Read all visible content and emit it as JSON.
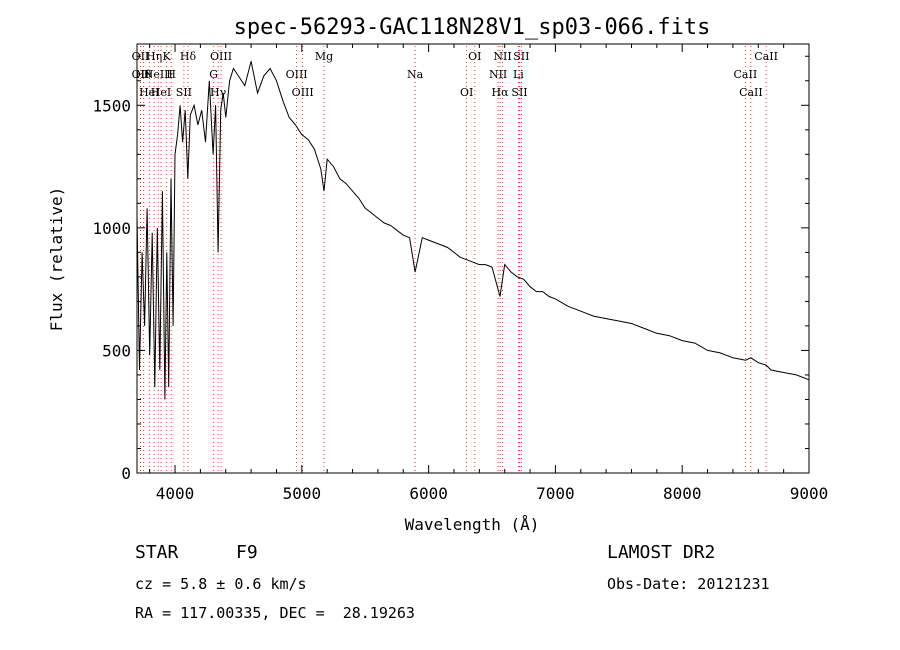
{
  "chart_data": {
    "type": "line",
    "title": "spec-56293-GAC118N28V1_sp03-066.fits",
    "xlabel": "Wavelength (Å)",
    "ylabel": "Flux (relative)",
    "xlim": [
      3700,
      9000
    ],
    "ylim": [
      0,
      1750
    ],
    "x_ticks": [
      4000,
      5000,
      6000,
      7000,
      8000,
      9000
    ],
    "y_ticks": [
      0,
      500,
      1000,
      1500
    ],
    "grid": false,
    "line_color": "#000000",
    "marker_color": "#ff0000",
    "series": [
      {
        "x": [
          3700,
          3720,
          3740,
          3760,
          3780,
          3800,
          3820,
          3840,
          3860,
          3880,
          3900,
          3920,
          3935,
          3950,
          3968,
          3985,
          4000,
          4020,
          4040,
          4060,
          4080,
          4101,
          4120,
          4150,
          4180,
          4210,
          4240,
          4270,
          4300,
          4320,
          4340,
          4360,
          4380,
          4400,
          4430,
          4460,
          4500,
          4550,
          4600,
          4650,
          4700,
          4750,
          4800,
          4850,
          4900,
          4950,
          5000,
          5050,
          5100,
          5150,
          5175,
          5200,
          5250,
          5300,
          5350,
          5400,
          5450,
          5500,
          5550,
          5600,
          5650,
          5700,
          5750,
          5800,
          5850,
          5893,
          5950,
          6000,
          6050,
          6100,
          6150,
          6200,
          6250,
          6300,
          6350,
          6400,
          6450,
          6500,
          6563,
          6600,
          6650,
          6700,
          6750,
          6800,
          6850,
          6900,
          6950,
          7000,
          7100,
          7200,
          7300,
          7400,
          7500,
          7600,
          7700,
          7800,
          7900,
          8000,
          8100,
          8200,
          8300,
          8400,
          8500,
          8542,
          8600,
          8662,
          8700,
          8800,
          8900,
          9000
        ],
        "y": [
          1050,
          420,
          900,
          600,
          1080,
          480,
          980,
          350,
          1000,
          420,
          1150,
          300,
          900,
          350,
          1200,
          600,
          1300,
          1380,
          1500,
          1350,
          1480,
          1200,
          1460,
          1500,
          1420,
          1480,
          1350,
          1600,
          1300,
          1500,
          900,
          1480,
          1550,
          1450,
          1600,
          1650,
          1620,
          1580,
          1680,
          1550,
          1620,
          1650,
          1600,
          1520,
          1450,
          1420,
          1380,
          1360,
          1320,
          1240,
          1150,
          1280,
          1250,
          1200,
          1180,
          1150,
          1120,
          1080,
          1060,
          1040,
          1020,
          1010,
          990,
          970,
          960,
          820,
          960,
          950,
          940,
          930,
          920,
          900,
          880,
          870,
          860,
          850,
          850,
          840,
          720,
          850,
          820,
          800,
          790,
          760,
          740,
          740,
          720,
          710,
          680,
          660,
          640,
          630,
          620,
          610,
          590,
          570,
          560,
          540,
          530,
          500,
          490,
          470,
          460,
          470,
          450,
          440,
          420,
          410,
          400,
          380
        ]
      }
    ],
    "line_markers": [
      {
        "wl": 3727,
        "labels": [
          "OII",
          "OII"
        ]
      },
      {
        "wl": 3750,
        "labels": [
          "Hθ"
        ]
      },
      {
        "wl": 3797,
        "labels": [
          "HeI"
        ]
      },
      {
        "wl": 3835,
        "labels": [
          "Hη"
        ]
      },
      {
        "wl": 3868,
        "labels": [
          "NeIII"
        ]
      },
      {
        "wl": 3889,
        "labels": [
          "HeI"
        ]
      },
      {
        "wl": 3934,
        "labels": [
          "K"
        ]
      },
      {
        "wl": 3970,
        "labels": [
          "H"
        ]
      },
      {
        "wl": 4070,
        "labels": [
          "SII"
        ]
      },
      {
        "wl": 4102,
        "labels": [
          "Hδ"
        ]
      },
      {
        "wl": 4305,
        "labels": [
          "G"
        ]
      },
      {
        "wl": 4340,
        "labels": [
          "Hγ"
        ]
      },
      {
        "wl": 4363,
        "labels": [
          "OIII"
        ]
      },
      {
        "wl": 4959,
        "labels": [
          "OIII"
        ]
      },
      {
        "wl": 5007,
        "labels": [
          "OIII"
        ]
      },
      {
        "wl": 5175,
        "labels": [
          "Mg"
        ]
      },
      {
        "wl": 5893,
        "labels": [
          "Na"
        ]
      },
      {
        "wl": 6300,
        "labels": [
          "OI"
        ]
      },
      {
        "wl": 6364,
        "labels": [
          "OI"
        ]
      },
      {
        "wl": 6548,
        "labels": [
          "NII"
        ]
      },
      {
        "wl": 6563,
        "labels": [
          "Hα"
        ]
      },
      {
        "wl": 6583,
        "labels": [
          "NII"
        ]
      },
      {
        "wl": 6708,
        "labels": [
          "Li"
        ]
      },
      {
        "wl": 6717,
        "labels": [
          "SII"
        ]
      },
      {
        "wl": 6731,
        "labels": [
          "SII"
        ]
      },
      {
        "wl": 8498,
        "labels": [
          "CaII"
        ]
      },
      {
        "wl": 8542,
        "labels": [
          "CaII"
        ]
      },
      {
        "wl": 8662,
        "labels": [
          "CaII"
        ]
      }
    ],
    "label_texts": {
      "OII": "OII",
      "Hθ": "Hθ",
      "HeI": "HeI",
      "Hη": "Hη",
      "K": "K",
      "H": "H",
      "SII": "SII",
      "Hδ": "Hδ",
      "G": "G",
      "Hγ": "Hγ",
      "OIII": "OIII",
      "Mg": "Mg",
      "Na": "Na",
      "OI": "OI",
      "NII": "NII",
      "Hα": "Hα",
      "Li": "Li",
      "CaII": "CaII"
    }
  },
  "info": {
    "object_type": "STAR",
    "subclass": "F9",
    "redshift": "cz = 5.8 ± 0.6 km/s",
    "coords": "RA = 117.00335, DEC =  28.19263",
    "survey": "LAMOST DR2",
    "obs_date": "Obs-Date: 20121231"
  }
}
